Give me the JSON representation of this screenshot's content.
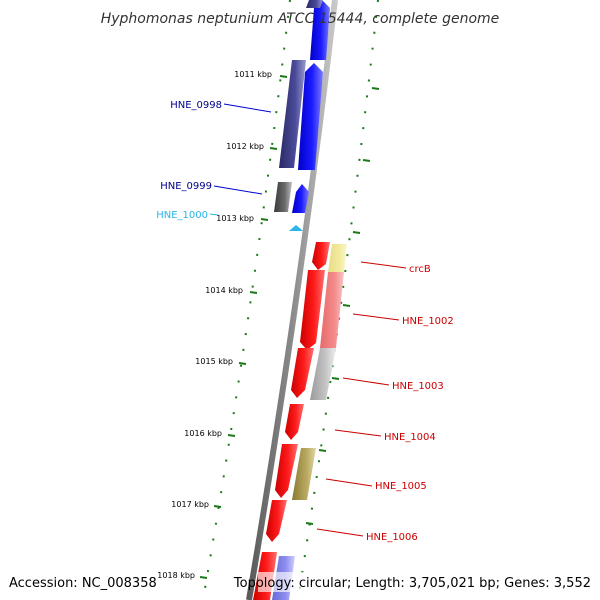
{
  "title": "Hyphomonas neptunium ATCC 15444, complete genome",
  "accession_label": "Accession: NC_008358",
  "topology_label": "Topology: circular; Length: 3,705,021 bp; Genes: 3,552",
  "colors": {
    "backbone": "#7a7a7a",
    "tick": "#1a7a1a",
    "forward_gene": "#0000ee",
    "reverse_gene": "#ee0000",
    "label_blue": "#00008b",
    "label_cyan": "#29b6e8",
    "label_red": "#cc0000"
  },
  "kbp_labels": [
    {
      "id": "1011",
      "text": "1011 kbp"
    },
    {
      "id": "1012",
      "text": "1012 kbp"
    },
    {
      "id": "1013",
      "text": "1013 kbp"
    },
    {
      "id": "1014",
      "text": "1014 kbp"
    },
    {
      "id": "1015",
      "text": "1015 kbp"
    },
    {
      "id": "1016",
      "text": "1016 kbp"
    },
    {
      "id": "1017",
      "text": "1017 kbp"
    },
    {
      "id": "1018",
      "text": "1018 kbp"
    }
  ],
  "gene_labels": [
    {
      "id": "hne0998",
      "text": "HNE_0998",
      "strand": "forward"
    },
    {
      "id": "hne0999",
      "text": "HNE_0999",
      "strand": "forward"
    },
    {
      "id": "hne1000",
      "text": "HNE_1000",
      "strand": "forward"
    },
    {
      "id": "crcb",
      "text": "crcB",
      "strand": "reverse"
    },
    {
      "id": "hne1002",
      "text": "HNE_1002",
      "strand": "reverse"
    },
    {
      "id": "hne1003",
      "text": "HNE_1003",
      "strand": "reverse"
    },
    {
      "id": "hne1004",
      "text": "HNE_1004",
      "strand": "reverse"
    },
    {
      "id": "hne1005",
      "text": "HNE_1005",
      "strand": "reverse"
    },
    {
      "id": "hne1006",
      "text": "HNE_1006",
      "strand": "reverse"
    }
  ]
}
